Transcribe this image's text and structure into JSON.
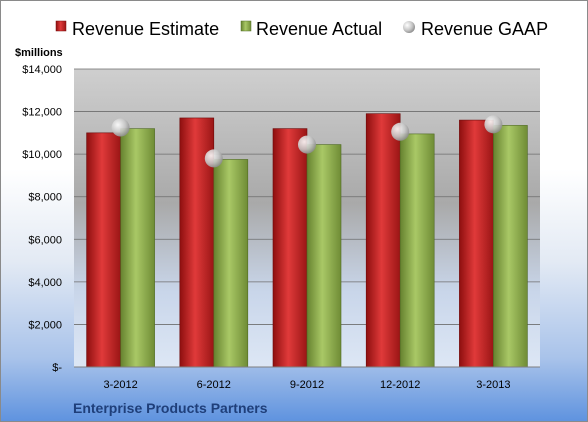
{
  "chart_data": {
    "type": "bar",
    "unit_label": "$millions",
    "footer": "Enterprise Products Partners",
    "categories": [
      "3-2012",
      "6-2012",
      "9-2012",
      "12-2012",
      "3-2013"
    ],
    "ylim": [
      0,
      14000
    ],
    "yticks": [
      0,
      2000,
      4000,
      6000,
      8000,
      10000,
      12000,
      14000
    ],
    "ytick_labels": [
      "$-",
      "$2,000",
      "$4,000",
      "$6,000",
      "$8,000",
      "$10,000",
      "$12,000",
      "$14,000"
    ],
    "grid": true,
    "legend_position": "top",
    "series": [
      {
        "name": "Revenue Estimate",
        "kind": "bar",
        "color": "#c81e1e",
        "values": [
          11000,
          11700,
          11200,
          11900,
          11600
        ]
      },
      {
        "name": "Revenue Actual",
        "kind": "bar",
        "color": "#8fb04a",
        "values": [
          11200,
          9750,
          10450,
          10950,
          11350
        ]
      },
      {
        "name": "Revenue GAAP",
        "kind": "point",
        "color": "#b8b8b8",
        "values": [
          11250,
          9800,
          10450,
          11050,
          11400
        ]
      }
    ]
  }
}
